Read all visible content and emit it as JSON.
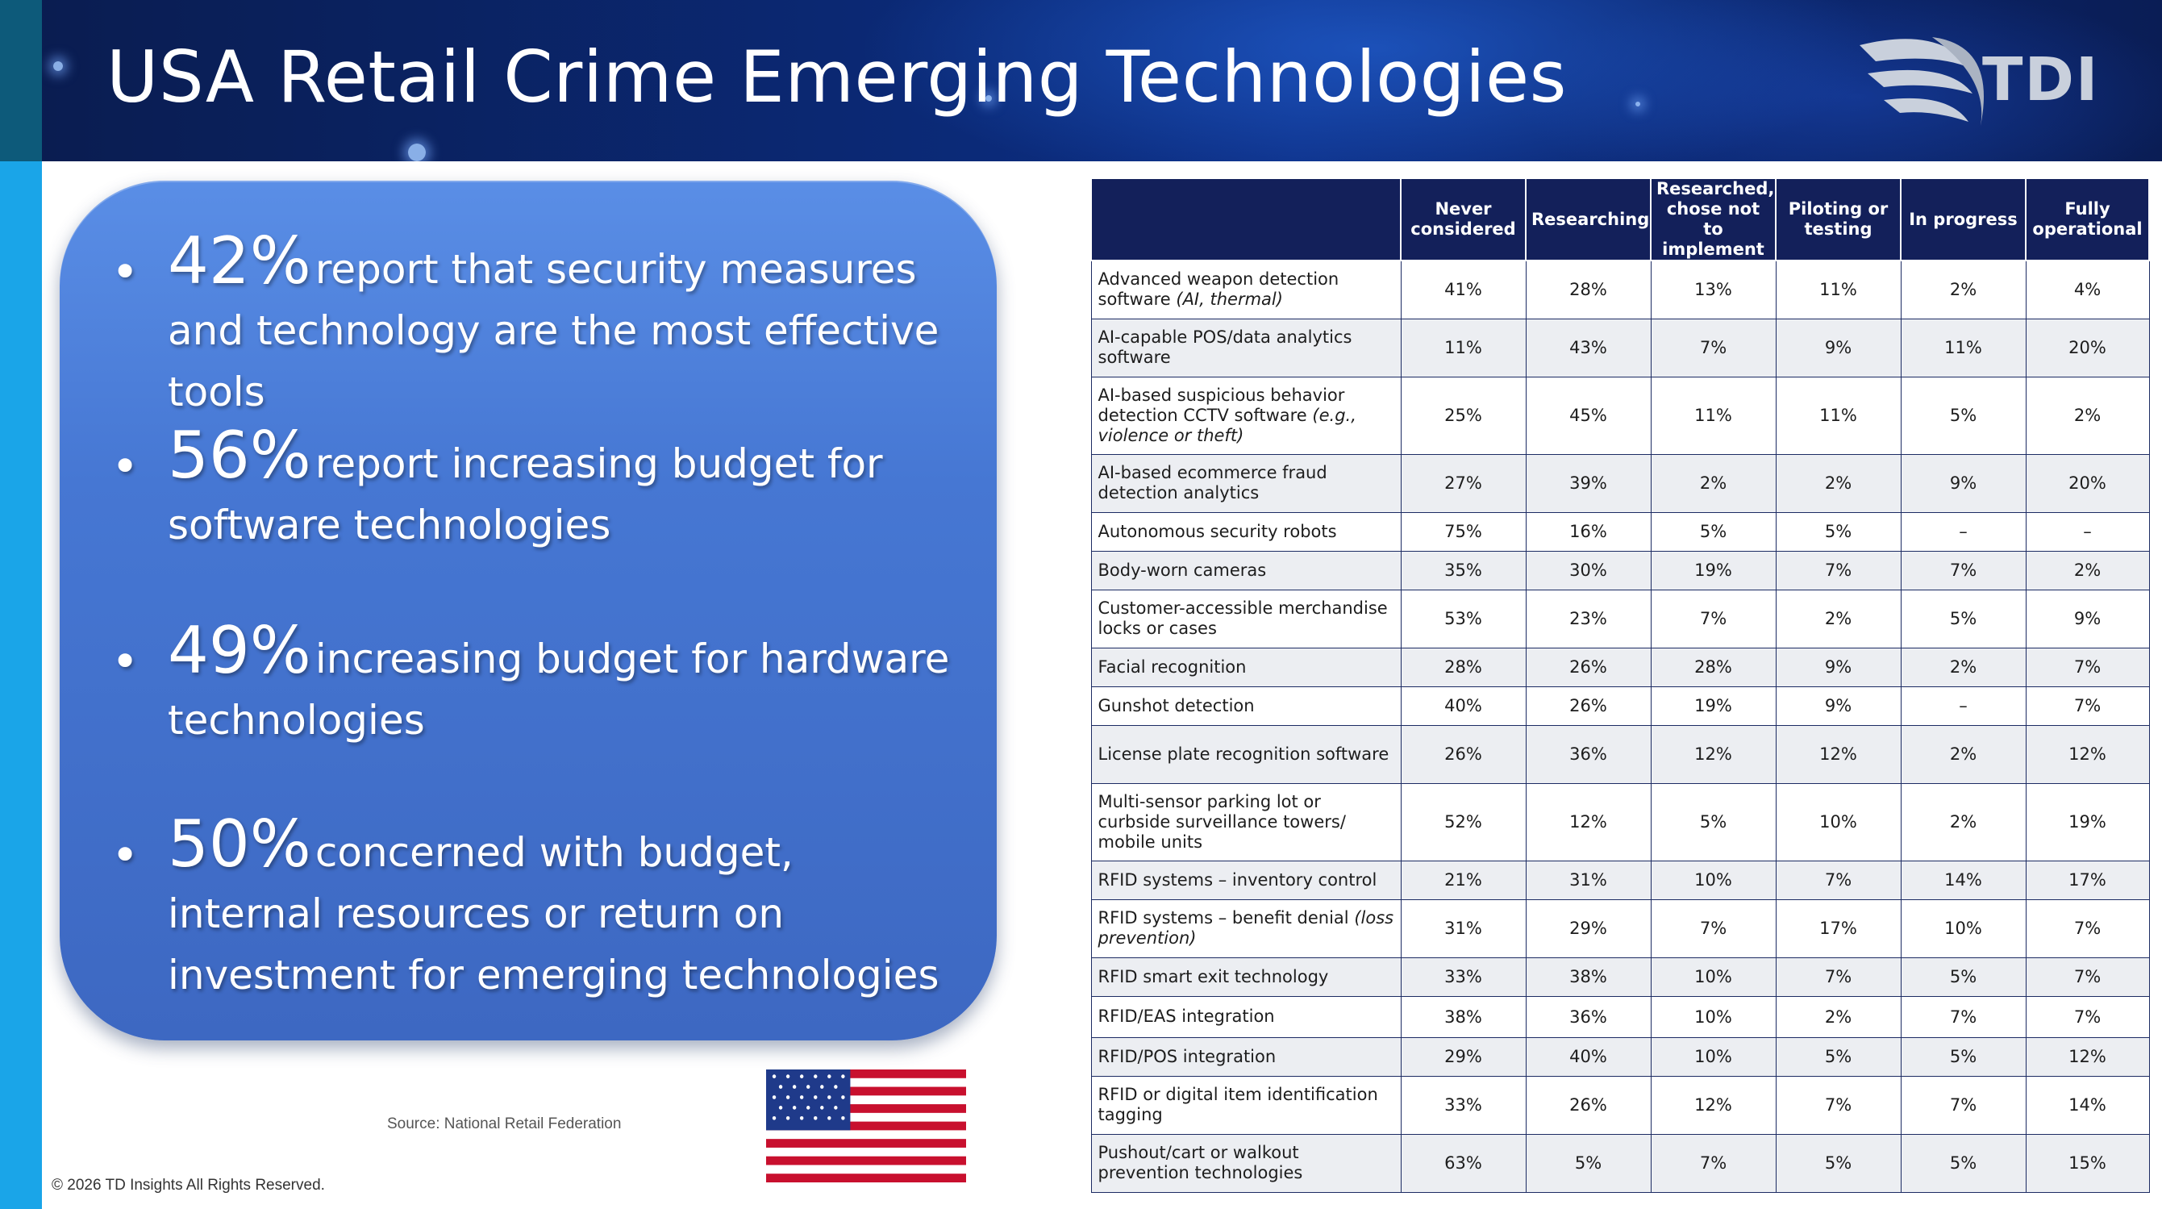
{
  "header": {
    "title": "USA Retail Crime Emerging Technologies",
    "logo_text": "TDI"
  },
  "bullets": [
    {
      "pct": "42%",
      "text": "report that security measures and technology are the most effective tools"
    },
    {
      "pct": "56%",
      "text": "report increasing budget for software technologies"
    },
    {
      "pct": "49%",
      "text": "increasing budget for hardware technologies"
    },
    {
      "pct": "50%",
      "text": "concerned with budget, internal resources or return on investment for emerging technologies"
    }
  ],
  "source": "Source: National Retail Federation",
  "copyright": "© 2026 TD Insights All Rights Reserved.",
  "table": {
    "headers": [
      "Never considered",
      "Researching",
      "Researched, chose not to implement",
      "Piloting or testing",
      "In progress",
      "Fully operational"
    ],
    "rows": [
      {
        "label": "Advanced weapon detection software",
        "note": "(AI, thermal)",
        "values": [
          "41%",
          "28%",
          "13%",
          "11%",
          "2%",
          "4%"
        ]
      },
      {
        "label": "AI-capable POS/data analytics software",
        "note": "",
        "values": [
          "11%",
          "43%",
          "7%",
          "9%",
          "11%",
          "20%"
        ]
      },
      {
        "label": "AI-based suspicious behavior detection CCTV software",
        "note": "(e.g., violence or theft)",
        "values": [
          "25%",
          "45%",
          "11%",
          "11%",
          "5%",
          "2%"
        ]
      },
      {
        "label": "AI-based ecommerce fraud detection analytics",
        "note": "",
        "values": [
          "27%",
          "39%",
          "2%",
          "2%",
          "9%",
          "20%"
        ]
      },
      {
        "label": "Autonomous security robots",
        "note": "",
        "values": [
          "75%",
          "16%",
          "5%",
          "5%",
          "–",
          "–"
        ]
      },
      {
        "label": "Body-worn cameras",
        "note": "",
        "values": [
          "35%",
          "30%",
          "19%",
          "7%",
          "7%",
          "2%"
        ]
      },
      {
        "label": "Customer-accessible merchandise locks or cases",
        "note": "",
        "values": [
          "53%",
          "23%",
          "7%",
          "2%",
          "5%",
          "9%"
        ]
      },
      {
        "label": "Facial recognition",
        "note": "",
        "values": [
          "28%",
          "26%",
          "28%",
          "9%",
          "2%",
          "7%"
        ]
      },
      {
        "label": "Gunshot detection",
        "note": "",
        "values": [
          "40%",
          "26%",
          "19%",
          "9%",
          "–",
          "7%"
        ]
      },
      {
        "label": "License plate recognition software",
        "note": "",
        "values": [
          "26%",
          "36%",
          "12%",
          "12%",
          "2%",
          "12%"
        ]
      },
      {
        "label": "Multi-sensor parking lot or curbside surveillance towers/ mobile units",
        "note": "",
        "values": [
          "52%",
          "12%",
          "5%",
          "10%",
          "2%",
          "19%"
        ]
      },
      {
        "label": "RFID systems – inventory control",
        "note": "",
        "values": [
          "21%",
          "31%",
          "10%",
          "7%",
          "14%",
          "17%"
        ]
      },
      {
        "label": "RFID systems – benefit denial",
        "note": "(loss prevention)",
        "values": [
          "31%",
          "29%",
          "7%",
          "17%",
          "10%",
          "7%"
        ]
      },
      {
        "label": "RFID smart exit technology",
        "note": "",
        "values": [
          "33%",
          "38%",
          "10%",
          "7%",
          "5%",
          "7%"
        ]
      },
      {
        "label": "RFID/EAS integration",
        "note": "",
        "values": [
          "38%",
          "36%",
          "10%",
          "2%",
          "7%",
          "7%"
        ]
      },
      {
        "label": "RFID/POS integration",
        "note": "",
        "values": [
          "29%",
          "40%",
          "10%",
          "5%",
          "5%",
          "12%"
        ]
      },
      {
        "label": "RFID or digital item identification tagging",
        "note": "",
        "values": [
          "33%",
          "26%",
          "12%",
          "7%",
          "7%",
          "14%"
        ]
      },
      {
        "label": "Pushout/cart or walkout prevention technologies",
        "note": "",
        "values": [
          "63%",
          "5%",
          "7%",
          "5%",
          "5%",
          "15%"
        ]
      }
    ]
  },
  "colors": {
    "header_bg": "#0b2a78",
    "table_header": "#13205a",
    "panel": "#4677d3",
    "strip": "#1aa5e8"
  }
}
